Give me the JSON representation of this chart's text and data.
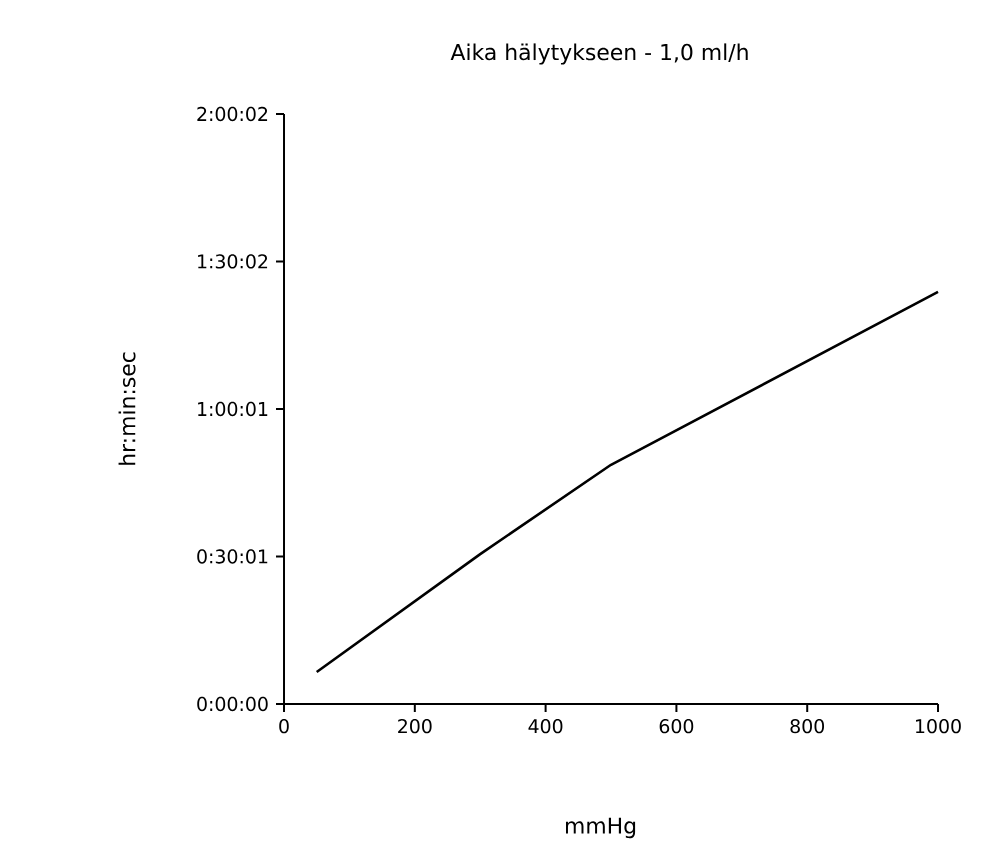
{
  "chart_data": {
    "type": "line",
    "title": "Aika hälytykseen - 1,0 ml/h",
    "xlabel": "mmHg",
    "ylabel": "hr:min:sec",
    "x": [
      50,
      300,
      500,
      1000
    ],
    "series": [
      {
        "color": "#000000",
        "values": [
          390,
          1830,
          2920,
          5030
        ]
      }
    ],
    "xlim": [
      0,
      1000
    ],
    "xticks": [
      0,
      200,
      400,
      600,
      800,
      1000
    ],
    "ylim": [
      0,
      7202
    ],
    "yticks": [
      {
        "value": 0,
        "label": "0:00:00"
      },
      {
        "value": 1801,
        "label": "0:30:01"
      },
      {
        "value": 3601,
        "label": "1:00:01"
      },
      {
        "value": 5402,
        "label": "1:30:02"
      },
      {
        "value": 7202,
        "label": "2:00:02"
      }
    ],
    "grid": false,
    "marker": "none",
    "line_style": "solid"
  }
}
